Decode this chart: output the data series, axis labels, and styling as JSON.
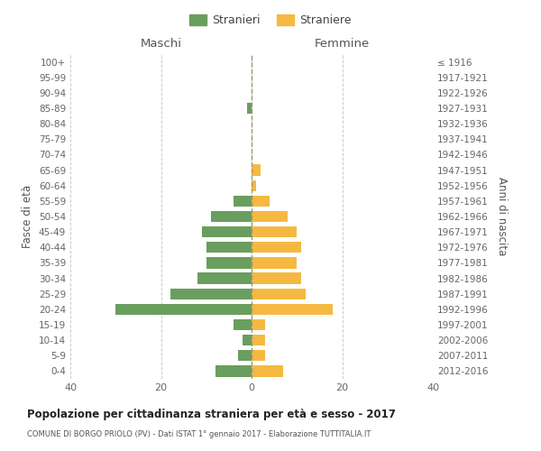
{
  "age_groups": [
    "0-4",
    "5-9",
    "10-14",
    "15-19",
    "20-24",
    "25-29",
    "30-34",
    "35-39",
    "40-44",
    "45-49",
    "50-54",
    "55-59",
    "60-64",
    "65-69",
    "70-74",
    "75-79",
    "80-84",
    "85-89",
    "90-94",
    "95-99",
    "100+"
  ],
  "birth_years": [
    "2012-2016",
    "2007-2011",
    "2002-2006",
    "1997-2001",
    "1992-1996",
    "1987-1991",
    "1982-1986",
    "1977-1981",
    "1972-1976",
    "1967-1971",
    "1962-1966",
    "1957-1961",
    "1952-1956",
    "1947-1951",
    "1942-1946",
    "1937-1941",
    "1932-1936",
    "1927-1931",
    "1922-1926",
    "1917-1921",
    "≤ 1916"
  ],
  "stranieri": [
    8,
    3,
    2,
    4,
    30,
    18,
    12,
    10,
    10,
    11,
    9,
    4,
    0,
    0,
    0,
    0,
    0,
    1,
    0,
    0,
    0
  ],
  "straniere": [
    7,
    3,
    3,
    3,
    18,
    12,
    11,
    10,
    11,
    10,
    8,
    4,
    1,
    2,
    0,
    0,
    0,
    0,
    0,
    0,
    0
  ],
  "color_stranieri": "#6a9e5e",
  "color_straniere": "#f5b942",
  "xlabel_left": "Maschi",
  "xlabel_right": "Femmine",
  "ylabel_left": "Fasce di età",
  "ylabel_right": "Anni di nascita",
  "title": "Popolazione per cittadinanza straniera per età e sesso - 2017",
  "subtitle": "COMUNE DI BORGO PRIOLO (PV) - Dati ISTAT 1° gennaio 2017 - Elaborazione TUTTITALIA.IT",
  "legend_stranieri": "Stranieri",
  "legend_straniere": "Straniere",
  "xlim": 40,
  "bg_color": "#ffffff",
  "grid_color": "#cccccc"
}
